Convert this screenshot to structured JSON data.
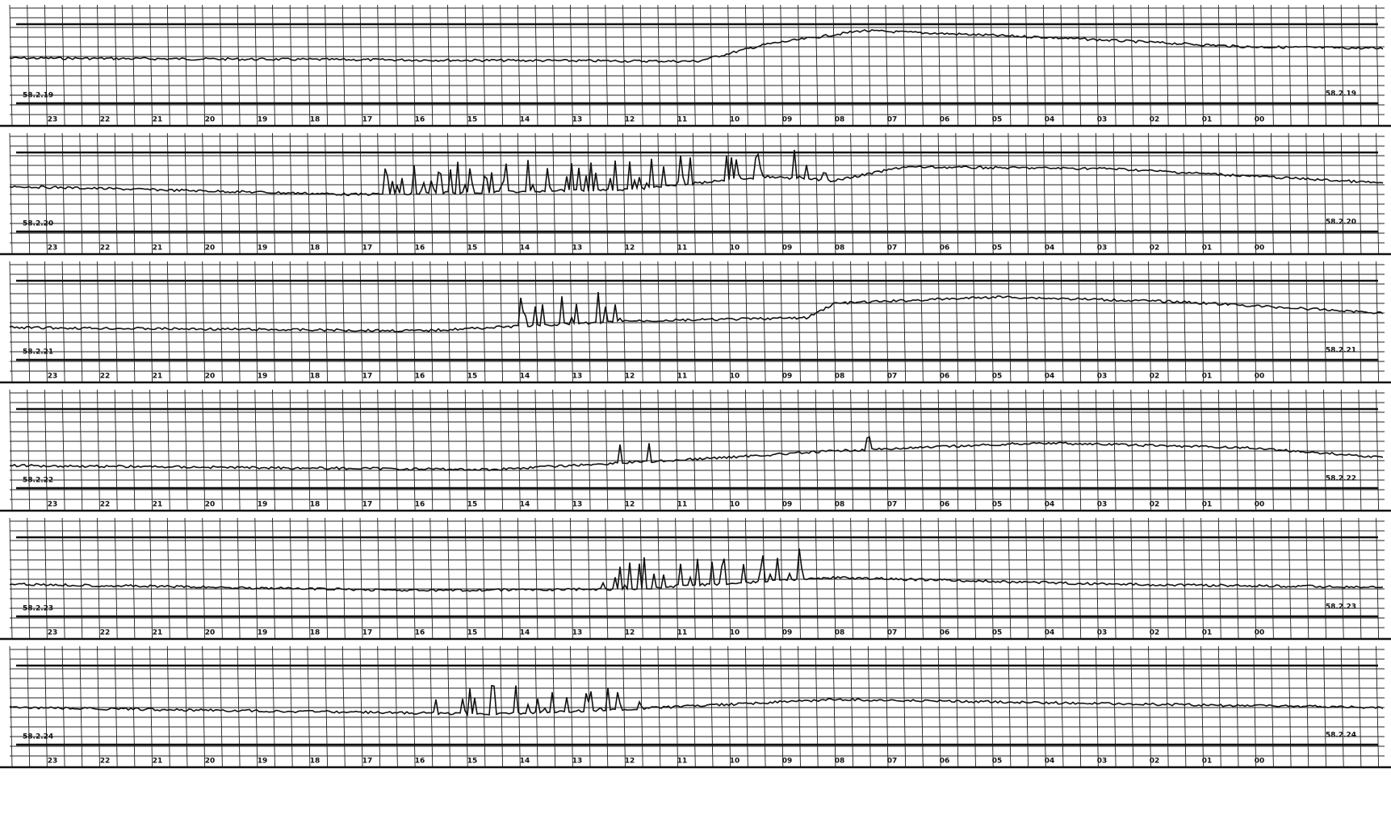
{
  "strips": [
    {
      "date": "58.2.19",
      "hours": [
        "23",
        "22",
        "21",
        "20",
        "19",
        "18",
        "17",
        "16",
        "15",
        "14",
        "13",
        "12",
        "11",
        "10",
        "09",
        "08",
        "07",
        "06",
        "05",
        "04",
        "03",
        "02",
        "01",
        "00"
      ]
    },
    {
      "date": "58.2.20",
      "hours": [
        "23",
        "22",
        "21",
        "20",
        "19",
        "18",
        "17",
        "16",
        "15",
        "14",
        "13",
        "12",
        "11",
        "10",
        "09",
        "08",
        "07",
        "06",
        "05",
        "04",
        "03",
        "02",
        "01",
        "00"
      ]
    },
    {
      "date": "58.2.21",
      "hours": [
        "23",
        "22",
        "21",
        "20",
        "19",
        "18",
        "17",
        "16",
        "15",
        "14",
        "13",
        "12",
        "11",
        "10",
        "09",
        "08",
        "07",
        "06",
        "05",
        "04",
        "03",
        "02",
        "01",
        "00"
      ]
    },
    {
      "date": "58.2.22",
      "hours": [
        "23",
        "22",
        "21",
        "20",
        "19",
        "18",
        "17",
        "16",
        "15",
        "14",
        "13",
        "12",
        "11",
        "10",
        "09",
        "08",
        "07",
        "06",
        "05",
        "04",
        "03",
        "02",
        "01",
        "00"
      ]
    },
    {
      "date": "58.2.23",
      "hours": [
        "23",
        "22",
        "21",
        "20",
        "19",
        "18",
        "17",
        "16",
        "15",
        "14",
        "13",
        "12",
        "11",
        "10",
        "09",
        "08",
        "07",
        "06",
        "05",
        "04",
        "03",
        "02",
        "01",
        "00"
      ]
    },
    {
      "date": "58.2.24",
      "hours": [
        "23",
        "22",
        "21",
        "20",
        "19",
        "18",
        "17",
        "16",
        "15",
        "14",
        "13",
        "12",
        "11",
        "10",
        "09",
        "08",
        "07",
        "06",
        "05",
        "04",
        "03",
        "02",
        "01",
        "00"
      ]
    }
  ]
}
